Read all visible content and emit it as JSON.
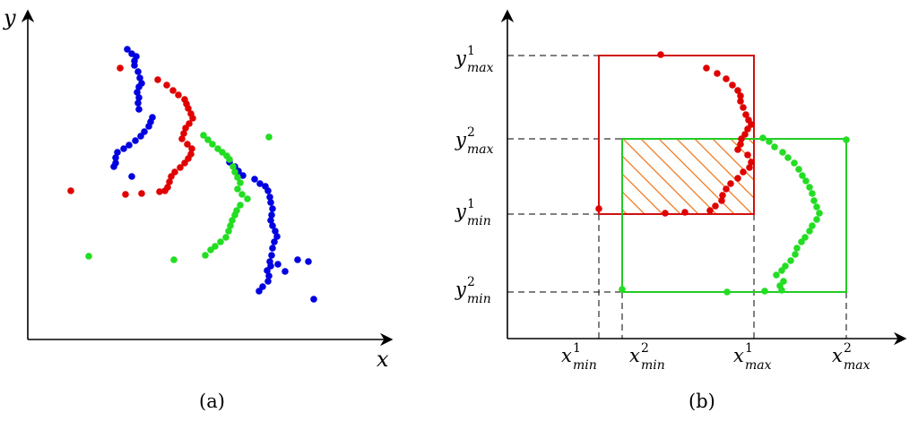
{
  "panel_a": {
    "caption": "(a)",
    "x_axis_label": "x",
    "y_axis_label": "y",
    "colors": {
      "red": "#e00000",
      "blue": "#0000e0",
      "green": "#22dd22"
    },
    "red_points": [
      [
        134,
        76
      ],
      [
        176,
        89
      ],
      [
        186,
        95
      ],
      [
        193,
        101
      ],
      [
        199,
        106
      ],
      [
        206,
        111
      ],
      [
        208,
        116
      ],
      [
        210,
        121
      ],
      [
        213,
        127
      ],
      [
        215,
        132
      ],
      [
        211,
        138
      ],
      [
        207,
        143
      ],
      [
        205,
        149
      ],
      [
        203,
        155
      ],
      [
        209,
        161
      ],
      [
        214,
        166
      ],
      [
        213,
        172
      ],
      [
        210,
        177
      ],
      [
        206,
        182
      ],
      [
        201,
        187
      ],
      [
        195,
        192
      ],
      [
        191,
        197
      ],
      [
        189,
        203
      ],
      [
        187,
        209
      ],
      [
        184,
        213
      ],
      [
        178,
        214
      ],
      [
        158,
        216
      ],
      [
        140,
        217
      ],
      [
        79,
        213
      ]
    ],
    "blue_points": [
      [
        142,
        55
      ],
      [
        147,
        60
      ],
      [
        152,
        63
      ],
      [
        150,
        68
      ],
      [
        150,
        73
      ],
      [
        154,
        80
      ],
      [
        156,
        87
      ],
      [
        158,
        93
      ],
      [
        155,
        97
      ],
      [
        153,
        103
      ],
      [
        155,
        109
      ],
      [
        154,
        115
      ],
      [
        155,
        122
      ],
      [
        170,
        131
      ],
      [
        168,
        136
      ],
      [
        166,
        141
      ],
      [
        161,
        147
      ],
      [
        157,
        152
      ],
      [
        151,
        157
      ],
      [
        144,
        162
      ],
      [
        138,
        166
      ],
      [
        131,
        170
      ],
      [
        129,
        176
      ],
      [
        129,
        182
      ],
      [
        127,
        186
      ],
      [
        147,
        197
      ],
      [
        256,
        181
      ],
      [
        262,
        186
      ],
      [
        266,
        191
      ],
      [
        271,
        196
      ],
      [
        284,
        200
      ],
      [
        290,
        205
      ],
      [
        296,
        208
      ],
      [
        299,
        213
      ],
      [
        301,
        220
      ],
      [
        302,
        226
      ],
      [
        304,
        233
      ],
      [
        303,
        240
      ],
      [
        302,
        246
      ],
      [
        304,
        252
      ],
      [
        307,
        258
      ],
      [
        309,
        264
      ],
      [
        306,
        270
      ],
      [
        304,
        277
      ],
      [
        303,
        285
      ],
      [
        301,
        292
      ],
      [
        302,
        297
      ],
      [
        298,
        302
      ],
      [
        300,
        308
      ],
      [
        299,
        314
      ],
      [
        293,
        320
      ],
      [
        289,
        325
      ],
      [
        310,
        295
      ],
      [
        318,
        303
      ],
      [
        332,
        290
      ],
      [
        344,
        292
      ],
      [
        350,
        334
      ]
    ],
    "green_points": [
      [
        227,
        151
      ],
      [
        232,
        156
      ],
      [
        237,
        161
      ],
      [
        243,
        166
      ],
      [
        248,
        170
      ],
      [
        253,
        174
      ],
      [
        256,
        178
      ],
      [
        260,
        186
      ],
      [
        262,
        192
      ],
      [
        265,
        198
      ],
      [
        268,
        204
      ],
      [
        265,
        211
      ],
      [
        270,
        217
      ],
      [
        276,
        222
      ],
      [
        268,
        229
      ],
      [
        264,
        235
      ],
      [
        262,
        240
      ],
      [
        259,
        246
      ],
      [
        257,
        252
      ],
      [
        255,
        258
      ],
      [
        252,
        265
      ],
      [
        246,
        270
      ],
      [
        240,
        275
      ],
      [
        235,
        279
      ],
      [
        229,
        285
      ],
      [
        300,
        153
      ],
      [
        99,
        286
      ],
      [
        194,
        290
      ]
    ]
  },
  "panel_b": {
    "caption": "(b)",
    "colors": {
      "red": "#e00000",
      "green": "#22dd22",
      "hatch": "#f07820"
    },
    "x_tick_labels": {
      "x1min": {
        "base": "x",
        "sup": "1",
        "sub": "min"
      },
      "x2min": {
        "base": "x",
        "sup": "2",
        "sub": "min"
      },
      "x1max": {
        "base": "x",
        "sup": "1",
        "sub": "max"
      },
      "x2max": {
        "base": "x",
        "sup": "2",
        "sub": "max"
      }
    },
    "y_tick_labels": {
      "y1max": {
        "base": "y",
        "sup": "1",
        "sub": "max"
      },
      "y2max": {
        "base": "y",
        "sup": "2",
        "sub": "max"
      },
      "y1min": {
        "base": "y",
        "sup": "1",
        "sub": "min"
      },
      "y2min": {
        "base": "y",
        "sup": "2",
        "sub": "min"
      }
    },
    "red_points": [
      [
        737,
        61
      ],
      [
        788,
        76
      ],
      [
        800,
        82
      ],
      [
        810,
        88
      ],
      [
        817,
        95
      ],
      [
        823,
        101
      ],
      [
        826,
        107
      ],
      [
        826,
        113
      ],
      [
        829,
        120
      ],
      [
        832,
        128
      ],
      [
        835,
        134
      ],
      [
        838,
        139
      ],
      [
        834,
        144
      ],
      [
        831,
        150
      ],
      [
        827,
        155
      ],
      [
        826,
        161
      ],
      [
        823,
        167
      ],
      [
        834,
        173
      ],
      [
        838,
        181
      ],
      [
        836,
        187
      ],
      [
        829,
        192
      ],
      [
        823,
        199
      ],
      [
        815,
        205
      ],
      [
        810,
        211
      ],
      [
        806,
        218
      ],
      [
        805,
        224
      ],
      [
        798,
        230
      ],
      [
        792,
        235
      ],
      [
        764,
        237
      ],
      [
        742,
        238
      ],
      [
        668,
        233
      ]
    ],
    "green_points": [
      [
        851,
        154
      ],
      [
        858,
        158
      ],
      [
        864,
        164
      ],
      [
        873,
        170
      ],
      [
        879,
        176
      ],
      [
        886,
        182
      ],
      [
        891,
        189
      ],
      [
        895,
        196
      ],
      [
        899,
        202
      ],
      [
        903,
        209
      ],
      [
        906,
        216
      ],
      [
        908,
        224
      ],
      [
        911,
        231
      ],
      [
        914,
        238
      ],
      [
        911,
        245
      ],
      [
        906,
        252
      ],
      [
        903,
        258
      ],
      [
        898,
        265
      ],
      [
        894,
        270
      ],
      [
        889,
        277
      ],
      [
        887,
        284
      ],
      [
        882,
        291
      ],
      [
        876,
        297
      ],
      [
        872,
        302
      ],
      [
        866,
        307
      ],
      [
        874,
        314
      ],
      [
        870,
        319
      ],
      [
        872,
        324
      ],
      [
        853,
        325
      ],
      [
        944,
        156
      ],
      [
        694,
        323
      ],
      [
        811,
        326
      ]
    ]
  }
}
